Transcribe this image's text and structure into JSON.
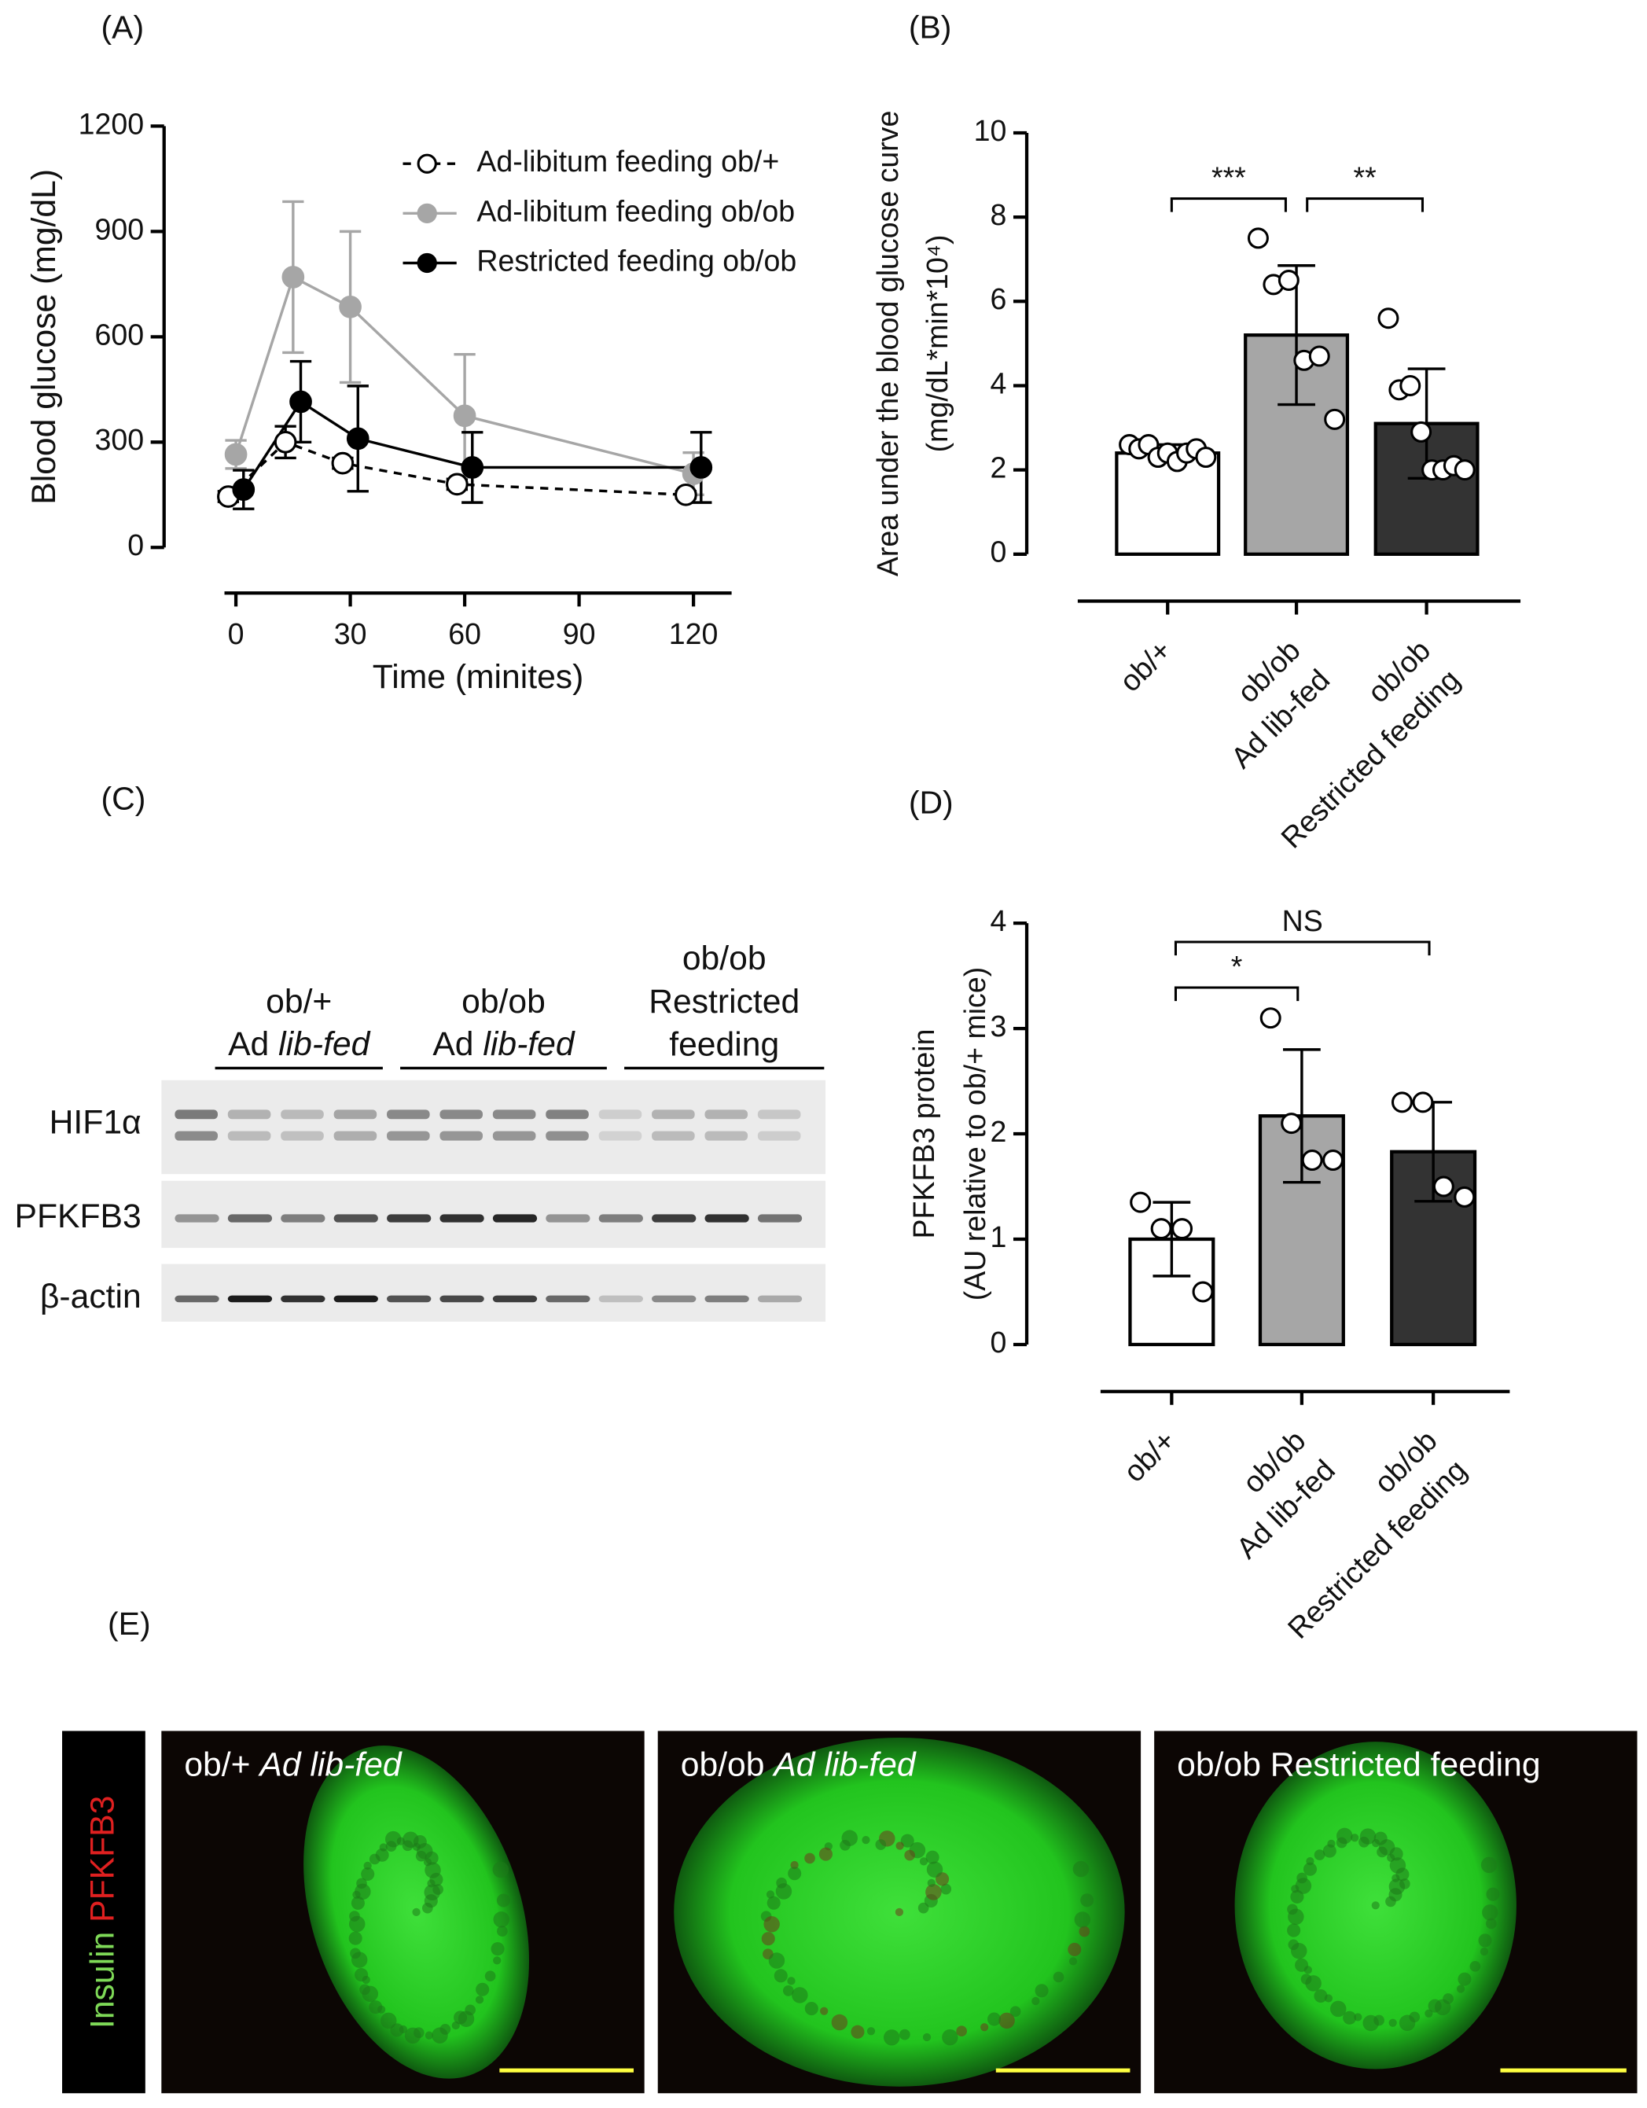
{
  "chart_data": [
    {
      "type": "line",
      "panel_label": "(A)",
      "xlabel": "Time (minites)",
      "ylabel": "Blood glucose (mg/dL)",
      "xlim": [
        -3,
        130
      ],
      "xticks": [
        0,
        30,
        60,
        90,
        120
      ],
      "ylim": [
        0,
        1200
      ],
      "yticks": [
        0,
        300,
        600,
        900,
        1200
      ],
      "series": [
        {
          "name": "Ad-libitum feeding ob/+",
          "color": "#ffffff",
          "line_style": "dashed",
          "x": [
            -2,
            13,
            28,
            58,
            118
          ],
          "values": [
            145,
            300,
            240,
            180,
            150
          ],
          "errors": [
            15,
            45,
            15,
            15,
            10
          ]
        },
        {
          "name": "Ad-libitum feeding ob/ob",
          "color": "#a6a6a6",
          "line_style": "solid",
          "x": [
            0,
            15,
            30,
            60,
            120
          ],
          "values": [
            265,
            770,
            685,
            375,
            210
          ],
          "errors": [
            40,
            215,
            215,
            175,
            60
          ]
        },
        {
          "name": "Restricted feeding ob/ob",
          "color": "#000000",
          "line_style": "solid",
          "x": [
            2,
            17,
            32,
            62,
            122
          ],
          "values": [
            165,
            415,
            310,
            228,
            228
          ],
          "errors": [
            55,
            115,
            150,
            100,
            100
          ]
        }
      ]
    },
    {
      "type": "bar",
      "panel_label": "(B)",
      "ylabel": [
        "Area under the blood glucose curve",
        "(mg/dL*min*10⁴)"
      ],
      "categories": [
        [
          "ob/+"
        ],
        [
          "ob/ob",
          "Ad lib-fed"
        ],
        [
          "ob/ob",
          "Restricted feeding"
        ]
      ],
      "values": [
        2.4,
        5.2,
        3.1
      ],
      "errors": [
        0.2,
        1.65,
        1.3
      ],
      "colors": [
        "#ffffff",
        "#a6a6a6",
        "#333333"
      ],
      "points": [
        [
          2.6,
          2.5,
          2.6,
          2.3,
          2.4,
          2.2,
          2.4,
          2.5,
          2.3
        ],
        [
          7.5,
          6.4,
          6.5,
          4.6,
          4.7,
          3.2
        ],
        [
          5.6,
          3.9,
          4.0,
          2.9,
          2.0,
          2.0,
          2.1,
          2.0
        ]
      ],
      "ylim": [
        0,
        10
      ],
      "yticks": [
        0,
        2,
        4,
        6,
        8,
        10
      ],
      "annotations": [
        "***",
        "**"
      ]
    },
    {
      "type": "bar",
      "panel_label": "(D)",
      "ylabel": [
        "PFKFB3 protein",
        "(AU relative to ob/+ mice)"
      ],
      "categories": [
        [
          "ob/+"
        ],
        [
          "ob/ob",
          "Ad lib-fed"
        ],
        [
          "ob/ob",
          "Restricted feeding"
        ]
      ],
      "values": [
        1.0,
        2.17,
        1.83
      ],
      "errors": [
        0.35,
        0.63,
        0.47
      ],
      "colors": [
        "#ffffff",
        "#a6a6a6",
        "#333333"
      ],
      "points": [
        [
          1.35,
          1.1,
          1.1,
          0.5
        ],
        [
          3.1,
          2.1,
          1.75,
          1.75
        ],
        [
          2.3,
          2.3,
          1.5,
          1.4
        ]
      ],
      "ylim": [
        0,
        4
      ],
      "yticks": [
        0,
        1,
        2,
        3,
        4
      ],
      "annotations": [
        "*",
        "NS"
      ]
    }
  ],
  "blot": {
    "panel_label": "(C)",
    "groups": [
      {
        "lines": [
          "ob/+"
        ],
        "plain": "Ad",
        "italic": "lib-fed"
      },
      {
        "lines": [
          "ob/ob"
        ],
        "plain": "Ad",
        "italic": "lib-fed"
      },
      {
        "lines": [
          "ob/ob",
          "Restricted",
          "feeding"
        ]
      }
    ],
    "rows": [
      "HIF1α",
      "PFKFB3",
      "β-actin"
    ]
  },
  "images": {
    "panel_label": "(E)",
    "stain": [
      "Insulin",
      "PFKFB3"
    ],
    "panels": [
      {
        "plain": "ob/+",
        "italic": "Ad lib-fed"
      },
      {
        "plain": "ob/ob",
        "italic": "Ad lib-fed"
      },
      {
        "plain": "ob/ob Restricted feeding"
      }
    ]
  }
}
